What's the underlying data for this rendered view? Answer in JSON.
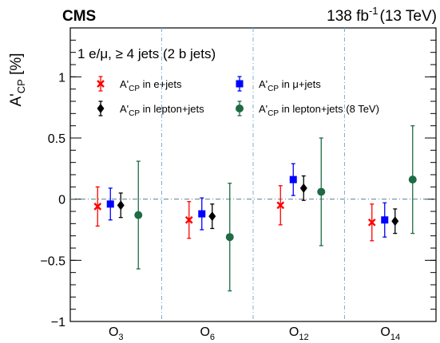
{
  "header": {
    "experiment": "CMS",
    "lumi_value": "138 fb",
    "lumi_exponent": "-1",
    "lumi_energy": "(13 TeV)"
  },
  "selection": {
    "text": "1 e/μ, ≥ 4 jets (2 b jets)"
  },
  "axis": {
    "ylabel_main": "A'",
    "ylabel_sub": "CP",
    "ylabel_unit": " [%]"
  },
  "legend": [
    {
      "id": "ej",
      "main": "A'",
      "sub": "CP",
      "rest": " in e+jets",
      "marker": "x",
      "color": "#ff0000"
    },
    {
      "id": "mj",
      "main": "A'",
      "sub": "CP",
      "rest": " in μ+jets",
      "marker": "square",
      "color": "#0000ff"
    },
    {
      "id": "lj",
      "main": "A'",
      "sub": "CP",
      "rest": " in lepton+jets",
      "marker": "diamond",
      "color": "#000000"
    },
    {
      "id": "lj8",
      "main": "A'",
      "sub": "CP",
      "rest": " in lepton+jets (8 TeV)",
      "marker": "circle",
      "color": "#1e6b44"
    }
  ],
  "chart_data": {
    "type": "scatter",
    "ylim": [
      -1,
      1.4
    ],
    "yticks": [
      -1,
      -0.5,
      0,
      0.5,
      1
    ],
    "ytick_labels": [
      "−1",
      "−0.5",
      "0",
      "0.5",
      "1"
    ],
    "reference_line": 0,
    "categories": [
      {
        "main": "O",
        "sub": "3"
      },
      {
        "main": "O",
        "sub": "6"
      },
      {
        "main": "O",
        "sub": "12"
      },
      {
        "main": "O",
        "sub": "14"
      }
    ],
    "series": [
      {
        "id": "ej",
        "marker": "x",
        "color": "#ff0000",
        "values": [
          -0.06,
          -0.17,
          -0.05,
          -0.19
        ],
        "errors": [
          0.16,
          0.15,
          0.16,
          0.15
        ]
      },
      {
        "id": "mj",
        "marker": "square",
        "color": "#0000ff",
        "values": [
          -0.04,
          -0.12,
          0.16,
          -0.17
        ],
        "errors": [
          0.13,
          0.13,
          0.13,
          0.14
        ]
      },
      {
        "id": "lj",
        "marker": "diamond",
        "color": "#000000",
        "values": [
          -0.05,
          -0.14,
          0.09,
          -0.18
        ],
        "errors": [
          0.1,
          0.1,
          0.1,
          0.1
        ]
      },
      {
        "id": "lj8",
        "marker": "circle",
        "color": "#1e6b44",
        "values": [
          -0.13,
          -0.31,
          0.06,
          0.16
        ],
        "errors": [
          0.44,
          0.44,
          0.44,
          0.44
        ]
      }
    ]
  }
}
